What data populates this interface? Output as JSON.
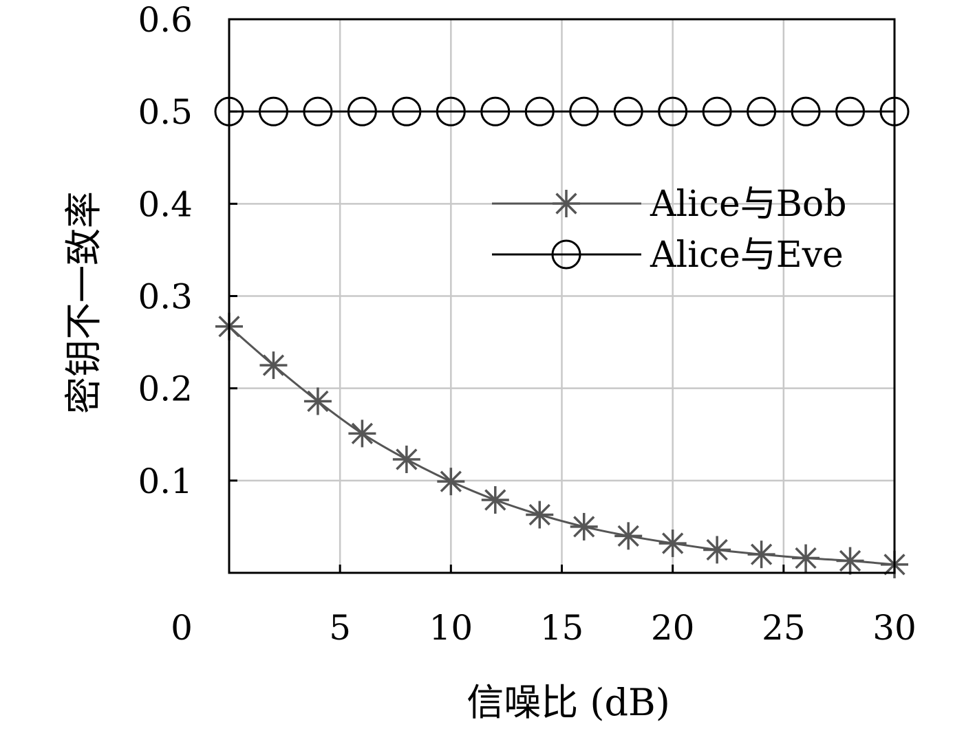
{
  "chart_data": {
    "type": "line",
    "title": "",
    "xlabel": "信噪比 (dB)",
    "ylabel": "密钥不一致率",
    "xlim": [
      0,
      30
    ],
    "ylim": [
      0,
      0.6
    ],
    "x_ticks": [
      {
        "value": 0,
        "label": "0"
      },
      {
        "value": 5,
        "label": "5"
      },
      {
        "value": 10,
        "label": "10"
      },
      {
        "value": 15,
        "label": "15"
      },
      {
        "value": 20,
        "label": "20"
      },
      {
        "value": 25,
        "label": "25"
      },
      {
        "value": 30,
        "label": "30"
      }
    ],
    "y_ticks": [
      {
        "value": 0.1,
        "label": "0.1"
      },
      {
        "value": 0.2,
        "label": "0.2"
      },
      {
        "value": 0.3,
        "label": "0.3"
      },
      {
        "value": 0.4,
        "label": "0.4"
      },
      {
        "value": 0.5,
        "label": "0.5"
      },
      {
        "value": 0.6,
        "label": "0.6"
      }
    ],
    "grid": true,
    "legend_position": "right-upper",
    "series": [
      {
        "name": "Alice与Bob",
        "marker": "asterisk",
        "color": "#555555",
        "x": [
          0,
          2,
          4,
          6,
          8,
          10,
          12,
          14,
          16,
          18,
          20,
          22,
          24,
          26,
          28,
          30
        ],
        "y": [
          0.267,
          0.225,
          0.186,
          0.151,
          0.123,
          0.099,
          0.079,
          0.063,
          0.05,
          0.04,
          0.032,
          0.025,
          0.02,
          0.016,
          0.013,
          0.009
        ]
      },
      {
        "name": "Alice与Eve",
        "marker": "circle",
        "color": "#000000",
        "x": [
          0,
          2,
          4,
          6,
          8,
          10,
          12,
          14,
          16,
          18,
          20,
          22,
          24,
          26,
          28,
          30
        ],
        "y": [
          0.5,
          0.5,
          0.5,
          0.5,
          0.5,
          0.5,
          0.5,
          0.5,
          0.5,
          0.5,
          0.5,
          0.5,
          0.5,
          0.5,
          0.5,
          0.5
        ]
      }
    ]
  }
}
